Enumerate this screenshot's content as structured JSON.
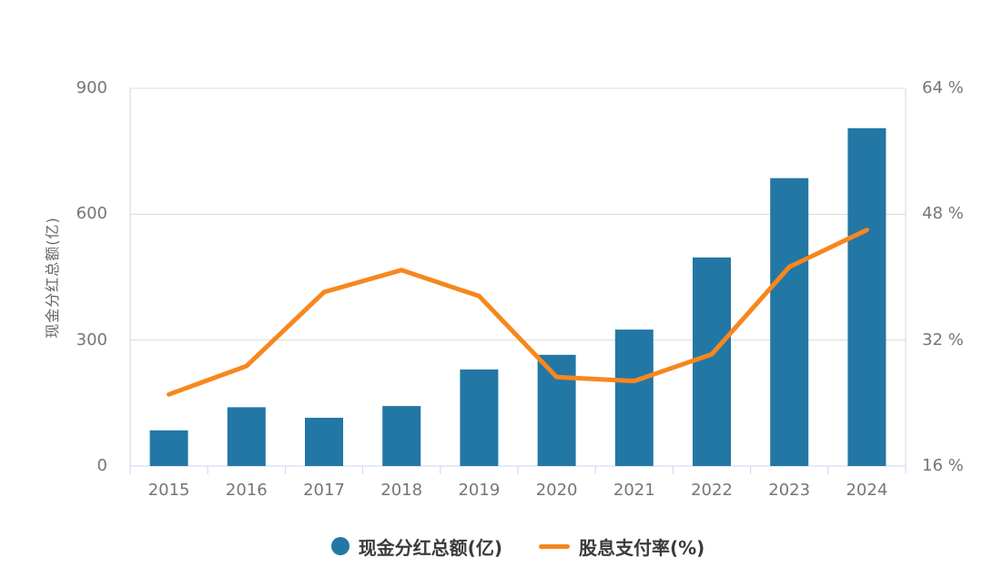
{
  "chart_data": {
    "type": "combo-bar-line",
    "categories": [
      "2015",
      "2016",
      "2017",
      "2018",
      "2019",
      "2020",
      "2021",
      "2022",
      "2023",
      "2024"
    ],
    "series": [
      {
        "name": "现金分红总额(亿)",
        "type": "bar",
        "axis": "left",
        "color": "#2377a4",
        "values": [
          85,
          140,
          115,
          143,
          230,
          265,
          325,
          497,
          686,
          805
        ]
      },
      {
        "name": "股息支付率(%)",
        "type": "line",
        "axis": "right",
        "color": "#f7871e",
        "values": [
          25.1,
          28.7,
          38.1,
          40.9,
          37.6,
          27.3,
          26.8,
          30.2,
          41.3,
          46.0
        ]
      }
    ],
    "left_axis": {
      "label": "现金分红总额(亿)",
      "min": 0,
      "max": 900,
      "ticks": [
        0,
        300,
        600,
        900
      ]
    },
    "right_axis": {
      "min": 16,
      "max": 64,
      "ticks": [
        16,
        32,
        48,
        64
      ],
      "tick_suffix": " %"
    },
    "grid": true,
    "legend_position": "bottom",
    "colors": {
      "bar": "#2377a4",
      "line": "#f7871e",
      "gridline": "#dcdcdc",
      "axis_frame": "#ccd6ec",
      "tick_label": "#767676",
      "axis_title": "#666666",
      "legend_text": "#3b3b3b",
      "background": "#ffffff"
    }
  }
}
